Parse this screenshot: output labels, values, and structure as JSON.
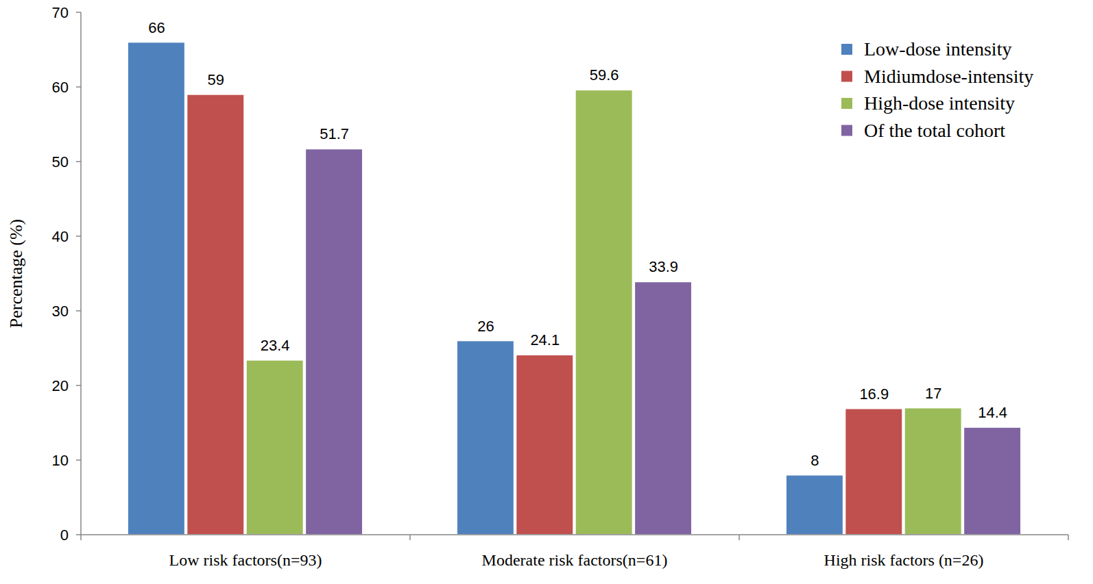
{
  "chart_data": {
    "type": "bar",
    "y_label": "Percentage (%)",
    "categories": [
      "Low risk factors(n=93)",
      "Moderate risk factors(n=61)",
      "High risk factors (n=26)"
    ],
    "series": [
      {
        "name": "Low-dose intensity",
        "color": "#4f81bd",
        "values": [
          66,
          26,
          8
        ]
      },
      {
        "name": "Midiumdose-intensity",
        "color": "#c0504d",
        "values": [
          59,
          24.1,
          16.9
        ]
      },
      {
        "name": "High-dose intensity",
        "color": "#9bbb59",
        "values": [
          23.4,
          59.6,
          17
        ]
      },
      {
        "name": "Of the total cohort",
        "color": "#8064a2",
        "values": [
          51.7,
          33.9,
          14.4
        ]
      }
    ],
    "ylim": [
      0,
      70
    ],
    "yticks": [
      0,
      10,
      20,
      30,
      40,
      50,
      60,
      70
    ],
    "grid": false,
    "legend": "top-right",
    "data_labels": true
  }
}
